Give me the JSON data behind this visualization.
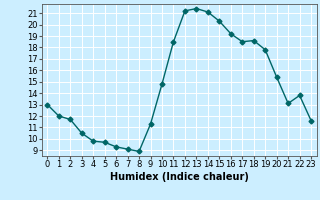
{
  "x": [
    0,
    1,
    2,
    3,
    4,
    5,
    6,
    7,
    8,
    9,
    10,
    11,
    12,
    13,
    14,
    15,
    16,
    17,
    18,
    19,
    20,
    21,
    22,
    23
  ],
  "y": [
    13,
    12,
    11.7,
    10.5,
    9.8,
    9.7,
    9.3,
    9.1,
    8.9,
    11.3,
    14.8,
    18.5,
    21.2,
    21.4,
    21.1,
    20.3,
    19.2,
    18.5,
    18.6,
    17.8,
    15.4,
    13.1,
    13.8,
    11.6
  ],
  "line_color": "#006666",
  "bg_color": "#cceeff",
  "grid_color": "#ffffff",
  "xlabel": "Humidex (Indice chaleur)",
  "ylim": [
    8.5,
    21.8
  ],
  "xlim": [
    -0.5,
    23.5
  ],
  "yticks": [
    9,
    10,
    11,
    12,
    13,
    14,
    15,
    16,
    17,
    18,
    19,
    20,
    21
  ],
  "xticks": [
    0,
    1,
    2,
    3,
    4,
    5,
    6,
    7,
    8,
    9,
    10,
    11,
    12,
    13,
    14,
    15,
    16,
    17,
    18,
    19,
    20,
    21,
    22,
    23
  ],
  "marker": "D",
  "marker_size": 2.5,
  "line_width": 1.0,
  "xlabel_fontsize": 7,
  "tick_fontsize": 6
}
